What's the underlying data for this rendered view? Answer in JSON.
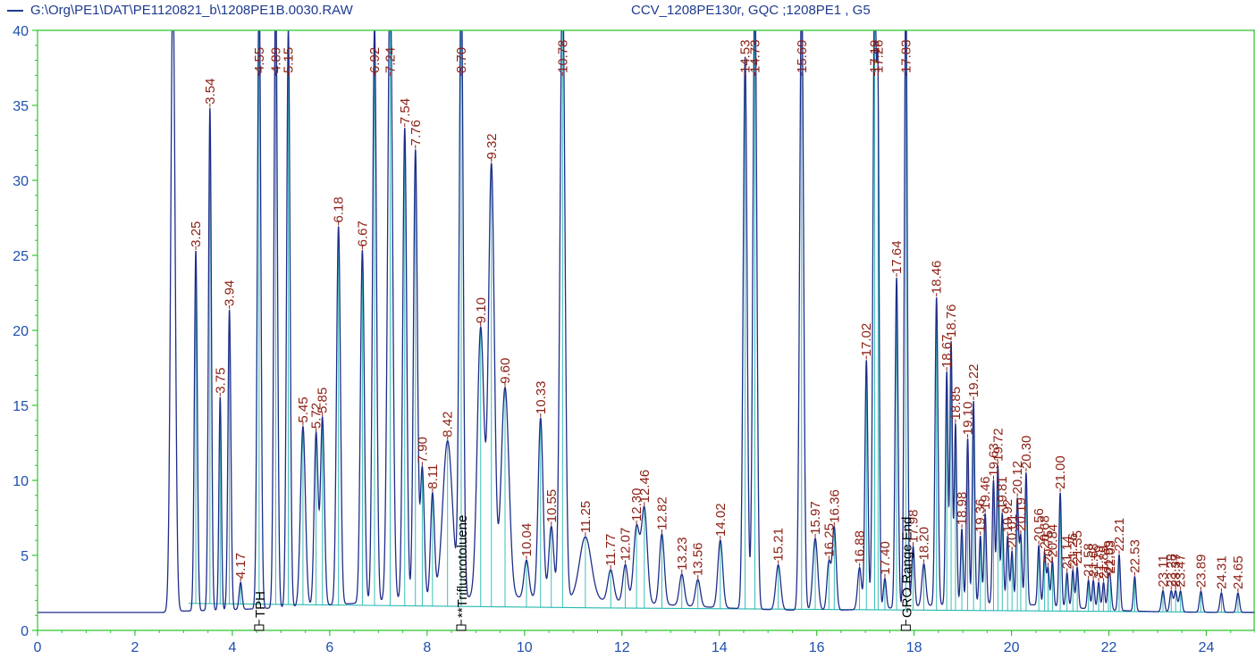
{
  "header": {
    "file_path": "G:\\Org\\PE1\\DAT\\PE1120821_b\\1208PE1B.0030.RAW",
    "sample_info": "CCV_1208PE130r, GQC ;1208PE1 , G5"
  },
  "colors": {
    "trace": "#1f2d8a",
    "baseline": "#27b8b0",
    "axis": "#2fc42f",
    "tick_text": "#1e4fae",
    "peak_label": "#8b1f14",
    "marker_text": "#000000"
  },
  "chart_data": {
    "type": "line",
    "title": "",
    "xlabel": "",
    "ylabel": "",
    "xlim": [
      0,
      25
    ],
    "ylim": [
      0,
      40
    ],
    "x_ticks": [
      0,
      2,
      4,
      6,
      8,
      10,
      12,
      14,
      16,
      18,
      20,
      22,
      24
    ],
    "y_ticks": [
      0,
      5,
      10,
      15,
      20,
      25,
      30,
      35,
      40
    ],
    "grid": false,
    "series": [
      {
        "name": "G:\\Org\\PE1\\DAT\\PE1120821_b\\1208PE1B.0030.RAW",
        "baseline_start": [
          0,
          1.2
        ],
        "baseline_rise_at": 2.7,
        "peaks": [
          {
            "rt": "2.78",
            "x": 2.78,
            "h": 42,
            "w": 0.045,
            "label": false
          },
          {
            "rt": "3.25",
            "x": 3.25,
            "h": 24,
            "w": 0.03
          },
          {
            "rt": "3.54",
            "x": 3.54,
            "h": 33.5,
            "w": 0.03
          },
          {
            "rt": "3.75",
            "x": 3.75,
            "h": 14.2,
            "w": 0.025
          },
          {
            "rt": "3.94",
            "x": 3.94,
            "h": 20,
            "w": 0.03
          },
          {
            "rt": "4.17",
            "x": 4.17,
            "h": 1.8,
            "w": 0.03
          },
          {
            "rt": "4.55",
            "x": 4.55,
            "h": 42,
            "w": 0.035
          },
          {
            "rt": "4.89",
            "x": 4.89,
            "h": 42,
            "w": 0.035
          },
          {
            "rt": "5.15",
            "x": 5.15,
            "h": 38.5,
            "w": 0.035
          },
          {
            "rt": "5.45",
            "x": 5.45,
            "h": 12,
            "w": 0.05
          },
          {
            "rt": "5.72",
            "x": 5.72,
            "h": 11.5,
            "w": 0.04
          },
          {
            "rt": "5.85",
            "x": 5.85,
            "h": 12.5,
            "w": 0.04
          },
          {
            "rt": "6.18",
            "x": 6.18,
            "h": 25.2,
            "w": 0.04
          },
          {
            "rt": "6.67",
            "x": 6.67,
            "h": 23.5,
            "w": 0.04
          },
          {
            "rt": "6.92",
            "x": 6.92,
            "h": 38.5,
            "w": 0.04
          },
          {
            "rt": "7.24",
            "x": 7.24,
            "h": 42,
            "w": 0.05
          },
          {
            "rt": "7.54",
            "x": 7.54,
            "h": 31.5,
            "w": 0.04
          },
          {
            "rt": "7.76",
            "x": 7.76,
            "h": 30,
            "w": 0.04
          },
          {
            "rt": "7.90",
            "x": 7.9,
            "h": 8.8,
            "w": 0.04
          },
          {
            "rt": "8.11",
            "x": 8.11,
            "h": 7,
            "w": 0.04
          },
          {
            "rt": "8.42",
            "x": 8.42,
            "h": 10.5,
            "w": 0.1
          },
          {
            "rt": "8.70",
            "x": 8.7,
            "h": 42,
            "w": 0.04
          },
          {
            "rt": "9.10",
            "x": 9.1,
            "h": 18,
            "w": 0.07
          },
          {
            "rt": "9.32",
            "x": 9.32,
            "h": 28.8,
            "w": 0.06
          },
          {
            "rt": "9.60",
            "x": 9.6,
            "h": 14,
            "w": 0.08
          },
          {
            "rt": "10.04",
            "x": 10.04,
            "h": 2.5,
            "w": 0.05
          },
          {
            "rt": "10.33",
            "x": 10.33,
            "h": 12,
            "w": 0.05
          },
          {
            "rt": "10.55",
            "x": 10.55,
            "h": 4.8,
            "w": 0.05
          },
          {
            "rt": "10.78",
            "x": 10.78,
            "h": 42,
            "w": 0.05
          },
          {
            "rt": "11.25",
            "x": 11.25,
            "h": 4.2,
            "w": 0.12
          },
          {
            "rt": "11.77",
            "x": 11.77,
            "h": 2.1,
            "w": 0.06
          },
          {
            "rt": "12.07",
            "x": 12.07,
            "h": 2.5,
            "w": 0.05
          },
          {
            "rt": "12.30",
            "x": 12.3,
            "h": 5,
            "w": 0.06
          },
          {
            "rt": "12.46",
            "x": 12.46,
            "h": 6.3,
            "w": 0.06
          },
          {
            "rt": "12.82",
            "x": 12.82,
            "h": 4.7,
            "w": 0.05
          },
          {
            "rt": "13.23",
            "x": 13.23,
            "h": 2.1,
            "w": 0.05
          },
          {
            "rt": "13.56",
            "x": 13.56,
            "h": 1.8,
            "w": 0.05
          },
          {
            "rt": "14.02",
            "x": 14.02,
            "h": 4.5,
            "w": 0.05
          },
          {
            "rt": "14.53",
            "x": 14.53,
            "h": 36.8,
            "w": 0.04
          },
          {
            "rt": "14.73",
            "x": 14.73,
            "h": 42,
            "w": 0.04
          },
          {
            "rt": "15.21",
            "x": 15.21,
            "h": 3,
            "w": 0.05
          },
          {
            "rt": "15.69",
            "x": 15.69,
            "h": 42,
            "w": 0.04
          },
          {
            "rt": "15.97",
            "x": 15.97,
            "h": 4.8,
            "w": 0.05
          },
          {
            "rt": "16.25",
            "x": 16.25,
            "h": 3.2,
            "w": 0.04
          },
          {
            "rt": "16.36",
            "x": 16.36,
            "h": 5.5,
            "w": 0.04
          },
          {
            "rt": "16.88",
            "x": 16.88,
            "h": 2.8,
            "w": 0.04
          },
          {
            "rt": "17.02",
            "x": 17.02,
            "h": 16.6,
            "w": 0.03
          },
          {
            "rt": "17.19",
            "x": 17.19,
            "h": 42,
            "w": 0.035
          },
          {
            "rt": "17.26",
            "x": 17.26,
            "h": 30,
            "w": 0.025
          },
          {
            "rt": "17.40",
            "x": 17.4,
            "h": 2,
            "w": 0.03
          },
          {
            "rt": "17.64",
            "x": 17.64,
            "h": 22,
            "w": 0.03
          },
          {
            "rt": "17.83",
            "x": 17.83,
            "h": 42,
            "w": 0.03
          },
          {
            "rt": "17.98",
            "x": 17.98,
            "h": 4,
            "w": 0.03
          },
          {
            "rt": "18.20",
            "x": 18.2,
            "h": 2.8,
            "w": 0.04
          },
          {
            "rt": "18.46",
            "x": 18.46,
            "h": 20.5,
            "w": 0.03
          },
          {
            "rt": "18.67",
            "x": 18.67,
            "h": 15.5,
            "w": 0.025
          },
          {
            "rt": "18.76",
            "x": 18.76,
            "h": 17.5,
            "w": 0.025
          },
          {
            "rt": "18.85",
            "x": 18.85,
            "h": 12,
            "w": 0.025
          },
          {
            "rt": "18.98",
            "x": 18.98,
            "h": 5,
            "w": 0.025
          },
          {
            "rt": "19.10",
            "x": 19.1,
            "h": 11,
            "w": 0.025
          },
          {
            "rt": "19.22",
            "x": 19.22,
            "h": 13.5,
            "w": 0.025
          },
          {
            "rt": "19.36",
            "x": 19.36,
            "h": 4.5,
            "w": 0.025
          },
          {
            "rt": "19.46",
            "x": 19.46,
            "h": 6,
            "w": 0.025
          },
          {
            "rt": "19.63",
            "x": 19.63,
            "h": 8.2,
            "w": 0.025
          },
          {
            "rt": "19.72",
            "x": 19.72,
            "h": 9.2,
            "w": 0.025
          },
          {
            "rt": "19.81",
            "x": 19.81,
            "h": 6,
            "w": 0.025
          },
          {
            "rt": "19.92",
            "x": 19.92,
            "h": 4.5,
            "w": 0.025
          },
          {
            "rt": "20.01",
            "x": 20.01,
            "h": 3.5,
            "w": 0.025
          },
          {
            "rt": "20.12",
            "x": 20.12,
            "h": 7,
            "w": 0.025
          },
          {
            "rt": "20.19",
            "x": 20.19,
            "h": 4.5,
            "w": 0.025
          },
          {
            "rt": "20.30",
            "x": 20.3,
            "h": 8.8,
            "w": 0.025
          },
          {
            "rt": "20.56",
            "x": 20.56,
            "h": 4,
            "w": 0.025
          },
          {
            "rt": "20.68",
            "x": 20.68,
            "h": 3.5,
            "w": 0.025
          },
          {
            "rt": "20.75",
            "x": 20.75,
            "h": 2.5,
            "w": 0.025
          },
          {
            "rt": "20.84",
            "x": 20.84,
            "h": 3,
            "w": 0.025
          },
          {
            "rt": "21.00",
            "x": 21,
            "h": 7.6,
            "w": 0.025
          },
          {
            "rt": "21.14",
            "x": 21.14,
            "h": 2.3,
            "w": 0.025
          },
          {
            "rt": "21.26",
            "x": 21.26,
            "h": 2.5,
            "w": 0.025
          },
          {
            "rt": "21.35",
            "x": 21.35,
            "h": 2.7,
            "w": 0.025
          },
          {
            "rt": "21.58",
            "x": 21.58,
            "h": 1.9,
            "w": 0.025
          },
          {
            "rt": "21.68",
            "x": 21.68,
            "h": 1.9,
            "w": 0.025
          },
          {
            "rt": "21.79",
            "x": 21.79,
            "h": 1.8,
            "w": 0.025
          },
          {
            "rt": "21.89",
            "x": 21.89,
            "h": 1.8,
            "w": 0.025
          },
          {
            "rt": "21.99",
            "x": 21.99,
            "h": 1.7,
            "w": 0.025
          },
          {
            "rt": "22.03",
            "x": 22.03,
            "h": 1.7,
            "w": 0.025
          },
          {
            "rt": "22.21",
            "x": 22.21,
            "h": 3.7,
            "w": 0.025
          },
          {
            "rt": "22.53",
            "x": 22.53,
            "h": 2.3,
            "w": 0.025
          },
          {
            "rt": "23.11",
            "x": 23.11,
            "h": 1.4,
            "w": 0.03
          },
          {
            "rt": "23.28",
            "x": 23.28,
            "h": 1.4,
            "w": 0.03
          },
          {
            "rt": "23.37",
            "x": 23.37,
            "h": 1.4,
            "w": 0.03
          },
          {
            "rt": "23.47",
            "x": 23.47,
            "h": 1.4,
            "w": 0.03
          },
          {
            "rt": "23.89",
            "x": 23.89,
            "h": 1.4,
            "w": 0.03
          },
          {
            "rt": "24.31",
            "x": 24.31,
            "h": 1.3,
            "w": 0.03
          },
          {
            "rt": "24.65",
            "x": 24.65,
            "h": 1.3,
            "w": 0.03
          }
        ]
      }
    ],
    "integration_baseline": [
      [
        3.1,
        1.8
      ],
      [
        11.5,
        1.5
      ],
      [
        25,
        1.2
      ]
    ],
    "markers": [
      {
        "x": 4.55,
        "text": "TPH"
      },
      {
        "x": 8.7,
        "text": "**Trifluorotoluene"
      },
      {
        "x": 17.83,
        "text": "GRO Range End"
      }
    ]
  }
}
